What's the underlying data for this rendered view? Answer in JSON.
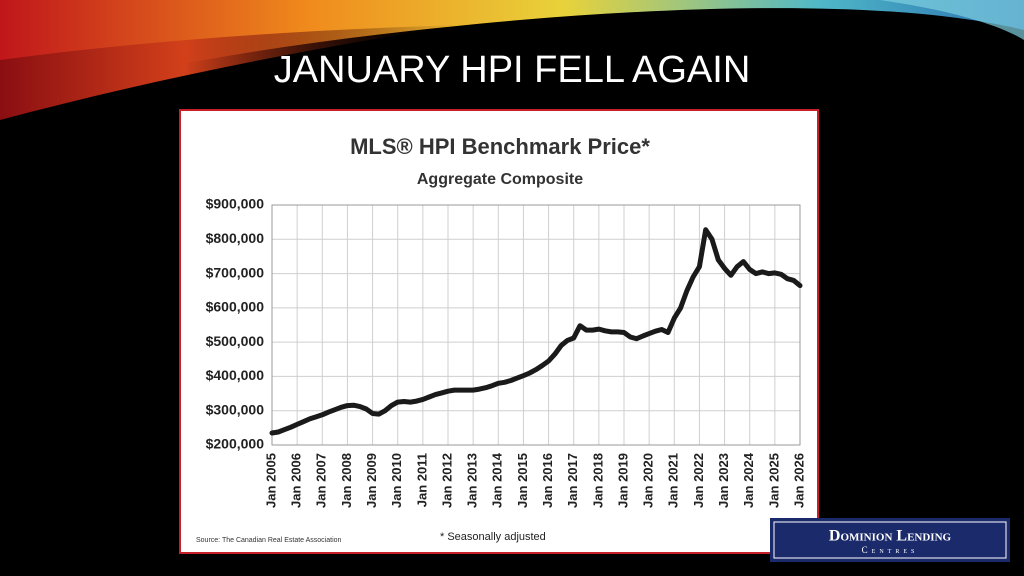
{
  "slide_title": "JANUARY HPI FELL AGAIN",
  "logo": {
    "line1": "Dominion Lending",
    "line2": "Centres"
  },
  "chart_data": {
    "type": "line",
    "title": "MLS® HPI Benchmark Price*",
    "subtitle": "Aggregate Composite",
    "source": "Source: The Canadian Real Estate Association",
    "note": "* Seasonally adjusted",
    "categories": [
      "Jan 2005",
      null,
      null,
      null,
      "Jan 2006",
      null,
      null,
      null,
      "Jan 2007",
      null,
      null,
      null,
      "Jan 2008",
      null,
      null,
      null,
      "Jan 2009",
      null,
      null,
      null,
      "Jan 2010",
      null,
      null,
      null,
      "Jan 2011",
      null,
      null,
      null,
      "Jan 2012",
      null,
      null,
      null,
      "Jan 2013",
      null,
      null,
      null,
      "Jan 2014",
      null,
      null,
      null,
      "Jan 2015",
      null,
      null,
      null,
      "Jan 2016",
      null,
      null,
      null,
      "Jan 2017",
      null,
      null,
      null,
      "Jan 2018",
      null,
      null,
      null,
      "Jan 2019",
      null,
      null,
      null,
      "Jan 2020",
      null,
      null,
      null,
      "Jan 2021",
      null,
      null,
      null,
      "Jan 2022",
      null,
      null,
      null,
      "Jan 2023",
      null,
      null,
      null,
      "Jan 2024",
      null,
      null,
      null,
      "Jan 2025",
      null,
      null,
      null,
      "Jan 2026"
    ],
    "series": [
      {
        "name": "MLS HPI",
        "color": "#1a1a1a",
        "values": [
          235000,
          238000,
          245000,
          252000,
          260000,
          268000,
          276000,
          282000,
          288000,
          296000,
          303000,
          310000,
          315000,
          316000,
          312000,
          305000,
          292000,
          290000,
          300000,
          315000,
          325000,
          327000,
          325000,
          328000,
          333000,
          340000,
          347000,
          352000,
          357000,
          360000,
          360000,
          360000,
          360000,
          363000,
          367000,
          373000,
          380000,
          383000,
          388000,
          395000,
          402000,
          410000,
          420000,
          432000,
          445000,
          465000,
          490000,
          505000,
          512000,
          548000,
          535000,
          535000,
          538000,
          533000,
          530000,
          530000,
          528000,
          515000,
          510000,
          518000,
          525000,
          532000,
          537000,
          528000,
          570000,
          600000,
          650000,
          690000,
          720000,
          828000,
          800000,
          740000,
          715000,
          695000,
          720000,
          735000,
          712000,
          700000,
          705000,
          700000,
          702000,
          698000,
          685000,
          680000,
          665000
        ]
      }
    ],
    "ylim": [
      200000,
      900000
    ],
    "yticks": [
      {
        "value": 200000,
        "label": "$200,000"
      },
      {
        "value": 300000,
        "label": "$300,000"
      },
      {
        "value": 400000,
        "label": "$400,000"
      },
      {
        "value": 500000,
        "label": "$500,000"
      },
      {
        "value": 600000,
        "label": "$600,000"
      },
      {
        "value": 700000,
        "label": "$700,000"
      },
      {
        "value": 800000,
        "label": "$800,000"
      },
      {
        "value": 900000,
        "label": "$900,000"
      }
    ],
    "grid": true
  }
}
